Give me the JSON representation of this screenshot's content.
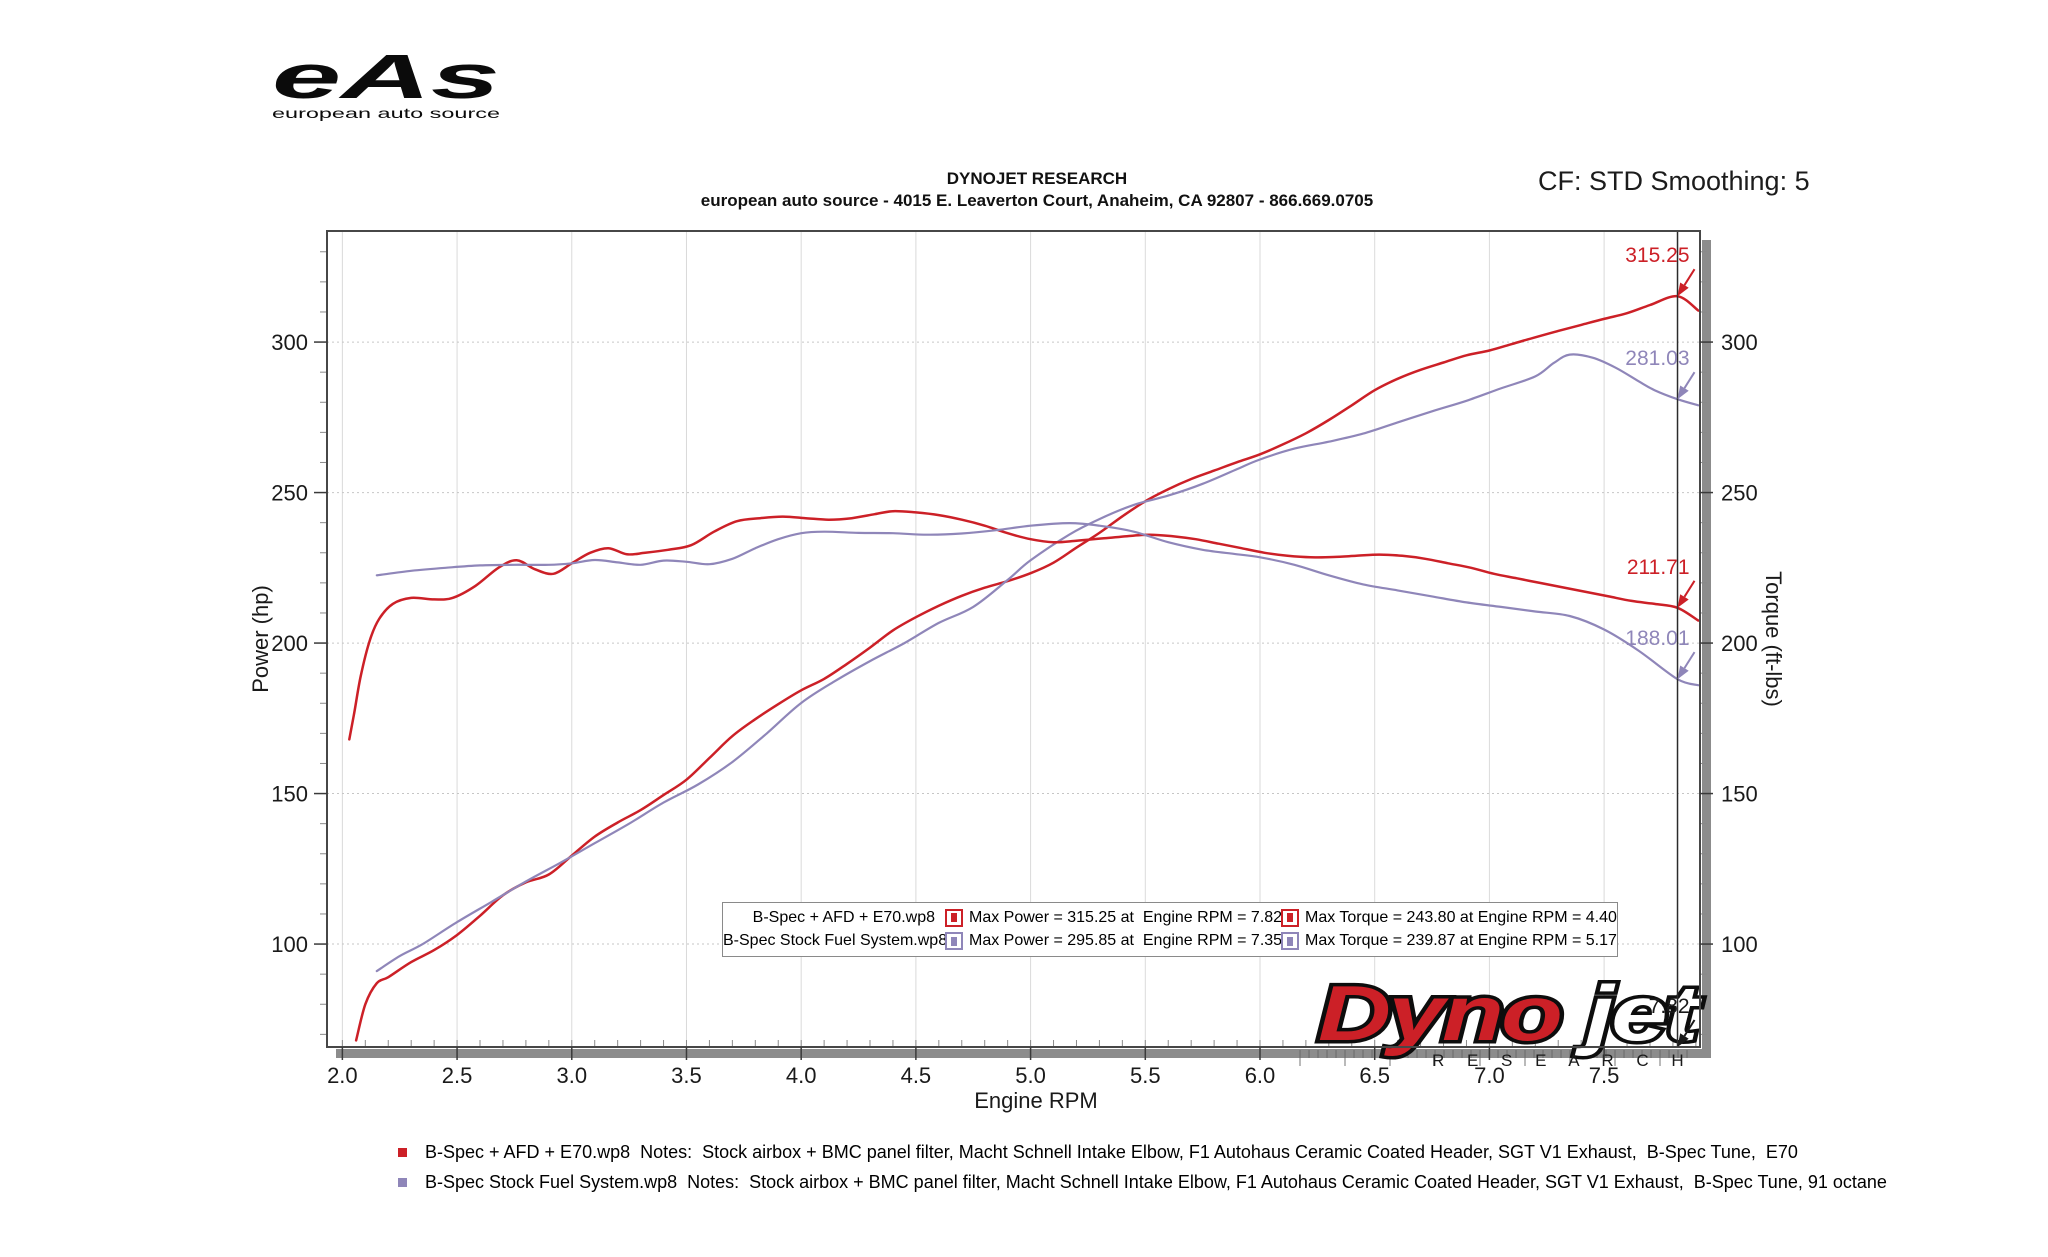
{
  "logo": {
    "text": "eAs",
    "subtext": "european auto source"
  },
  "header": {
    "line1": "DYNOJET RESEARCH",
    "line2": "european auto source - 4015 E. Leaverton Court, Anaheim, CA 92807 - 866.669.0705"
  },
  "smoothing_label": "CF: STD Smoothing: 5",
  "dynojet_logo": {
    "word1": "Dyno",
    "word2": "jet",
    "sub": "R E S E A R C H"
  },
  "legend": {
    "rows": [
      {
        "name": "B-Spec + AFD + E70.wp8",
        "color": "#cc2027",
        "power": "Max Power = 315.25 at  Engine RPM = 7.82",
        "torque": "Max Torque = 243.80 at Engine RPM = 4.40"
      },
      {
        "name": "B-Spec Stock Fuel System.wp8",
        "color": "#8f86b9",
        "power": "Max Power = 295.85 at  Engine RPM = 7.35",
        "torque": "Max Torque = 239.87 at Engine RPM = 5.17"
      }
    ]
  },
  "notes": {
    "rows": [
      {
        "color": "#cc2027",
        "text": "B-Spec + AFD + E70.wp8  Notes:  Stock airbox + BMC panel filter, Macht Schnell Intake Elbow, F1 Autohaus Ceramic Coated Header, SGT V1 Exhaust,  B-Spec Tune,  E70"
      },
      {
        "color": "#8f86b9",
        "text": "B-Spec Stock Fuel System.wp8  Notes:  Stock airbox + BMC panel filter, Macht Schnell Intake Elbow, F1 Autohaus Ceramic Coated Header, SGT V1 Exhaust,  B-Spec Tune, 91 octane"
      }
    ]
  },
  "chart_data": {
    "type": "line",
    "xlabel": "Engine RPM",
    "ylabel_left": "Power (hp)",
    "ylabel_right": "Torque (ft-lbs)",
    "x_range": [
      1.933,
      7.918
    ],
    "y_range": [
      65.8,
      336.9
    ],
    "x_ticks": [
      "2.0",
      "2.5",
      "3.0",
      "3.5",
      "4.0",
      "4.5",
      "5.0",
      "5.5",
      "6.0",
      "6.5",
      "7.0",
      "7.5"
    ],
    "y_ticks": [
      100,
      150,
      200,
      250,
      300
    ],
    "x_minor_step": 0.1,
    "y_minor_step": 10,
    "grid": true,
    "cursor_rpm": 7.82,
    "colors": {
      "red": "#cc2027",
      "purple": "#8f86b9",
      "cursor": "#2b2b2b"
    },
    "series": [
      {
        "id": "power-afd-e70",
        "name": "B-Spec + AFD + E70.wp8 Power",
        "color": "#cc2027",
        "width": 2.5,
        "points": [
          [
            2.06,
            68
          ],
          [
            2.1,
            80
          ],
          [
            2.15,
            87
          ],
          [
            2.2,
            89
          ],
          [
            2.3,
            94
          ],
          [
            2.4,
            98
          ],
          [
            2.5,
            103
          ],
          [
            2.6,
            109.4
          ],
          [
            2.7,
            116.2
          ],
          [
            2.8,
            120.5
          ],
          [
            2.9,
            123.1
          ],
          [
            3.0,
            129.4
          ],
          [
            3.1,
            135.7
          ],
          [
            3.2,
            140.4
          ],
          [
            3.3,
            144.5
          ],
          [
            3.4,
            149.5
          ],
          [
            3.5,
            154.6
          ],
          [
            3.6,
            161.8
          ],
          [
            3.7,
            169.1
          ],
          [
            3.8,
            174.7
          ],
          [
            3.9,
            179.7
          ],
          [
            4.0,
            184.3
          ],
          [
            4.1,
            188.1
          ],
          [
            4.2,
            193.1
          ],
          [
            4.3,
            198.5
          ],
          [
            4.4,
            204.2
          ],
          [
            4.5,
            208.6
          ],
          [
            4.6,
            212.4
          ],
          [
            4.7,
            215.7
          ],
          [
            4.8,
            218.4
          ],
          [
            4.9,
            220.6
          ],
          [
            5.0,
            223.2
          ],
          [
            5.1,
            226.7
          ],
          [
            5.2,
            231.7
          ],
          [
            5.3,
            236.6
          ],
          [
            5.4,
            242.1
          ],
          [
            5.5,
            247.1
          ],
          [
            5.6,
            251.1
          ],
          [
            5.7,
            254.5
          ],
          [
            5.8,
            257.3
          ],
          [
            5.9,
            260.1
          ],
          [
            6.0,
            262.7
          ],
          [
            6.1,
            266
          ],
          [
            6.2,
            269.7
          ],
          [
            6.3,
            274.1
          ],
          [
            6.4,
            279
          ],
          [
            6.5,
            284
          ],
          [
            6.6,
            287.8
          ],
          [
            6.7,
            290.8
          ],
          [
            6.8,
            293.2
          ],
          [
            6.9,
            295.6
          ],
          [
            7.0,
            297.2
          ],
          [
            7.1,
            299.4
          ],
          [
            7.2,
            301.6
          ],
          [
            7.3,
            303.7
          ],
          [
            7.4,
            305.7
          ],
          [
            7.5,
            307.7
          ],
          [
            7.6,
            309.6
          ],
          [
            7.7,
            312.3
          ],
          [
            7.82,
            315.25
          ],
          [
            7.91,
            310.5
          ]
        ]
      },
      {
        "id": "power-stock",
        "name": "B-Spec Stock Fuel System.wp8 Power",
        "color": "#8f86b9",
        "width": 2.2,
        "points": [
          [
            2.15,
            91
          ],
          [
            2.25,
            96
          ],
          [
            2.35,
            100
          ],
          [
            2.5,
            107.3
          ],
          [
            2.65,
            114
          ],
          [
            2.8,
            120.8
          ],
          [
            2.95,
            127
          ],
          [
            3.1,
            133.5
          ],
          [
            3.25,
            140
          ],
          [
            3.4,
            147
          ],
          [
            3.55,
            153
          ],
          [
            3.7,
            160.5
          ],
          [
            3.85,
            170
          ],
          [
            4.0,
            180.1
          ],
          [
            4.15,
            187.5
          ],
          [
            4.3,
            194
          ],
          [
            4.45,
            200
          ],
          [
            4.6,
            206.7
          ],
          [
            4.75,
            212
          ],
          [
            4.9,
            221
          ],
          [
            5.0,
            227.5
          ],
          [
            5.17,
            236.1
          ],
          [
            5.3,
            241.2
          ],
          [
            5.45,
            245.9
          ],
          [
            5.6,
            249
          ],
          [
            5.75,
            252.9
          ],
          [
            5.9,
            257.8
          ],
          [
            6.0,
            261
          ],
          [
            6.15,
            264.6
          ],
          [
            6.3,
            266.9
          ],
          [
            6.45,
            269.6
          ],
          [
            6.6,
            273.3
          ],
          [
            6.75,
            277
          ],
          [
            6.9,
            280.5
          ],
          [
            7.05,
            284.6
          ],
          [
            7.2,
            288.6
          ],
          [
            7.28,
            293
          ],
          [
            7.35,
            295.85
          ],
          [
            7.45,
            294.8
          ],
          [
            7.55,
            291.5
          ],
          [
            7.65,
            287
          ],
          [
            7.72,
            284
          ],
          [
            7.82,
            281.03
          ],
          [
            7.91,
            279
          ]
        ]
      },
      {
        "id": "torque-afd-e70",
        "name": "B-Spec + AFD + E70.wp8 Torque",
        "color": "#cc2027",
        "width": 2.5,
        "points": [
          [
            2.03,
            168
          ],
          [
            2.05,
            176
          ],
          [
            2.08,
            189
          ],
          [
            2.12,
            201
          ],
          [
            2.16,
            208
          ],
          [
            2.22,
            213
          ],
          [
            2.3,
            215
          ],
          [
            2.4,
            214.5
          ],
          [
            2.48,
            215
          ],
          [
            2.58,
            219
          ],
          [
            2.68,
            225
          ],
          [
            2.76,
            227.5
          ],
          [
            2.84,
            224.5
          ],
          [
            2.92,
            223
          ],
          [
            3.0,
            226.5
          ],
          [
            3.08,
            230
          ],
          [
            3.16,
            231.5
          ],
          [
            3.24,
            229.5
          ],
          [
            3.32,
            230
          ],
          [
            3.42,
            231
          ],
          [
            3.52,
            232.5
          ],
          [
            3.62,
            237
          ],
          [
            3.72,
            240.5
          ],
          [
            3.82,
            241.5
          ],
          [
            3.92,
            242
          ],
          [
            4.02,
            241.5
          ],
          [
            4.12,
            241
          ],
          [
            4.22,
            241.5
          ],
          [
            4.32,
            242.8
          ],
          [
            4.4,
            243.8
          ],
          [
            4.5,
            243.4
          ],
          [
            4.6,
            242.5
          ],
          [
            4.7,
            241
          ],
          [
            4.8,
            239
          ],
          [
            4.9,
            236.5
          ],
          [
            5.0,
            234.5
          ],
          [
            5.1,
            233.5
          ],
          [
            5.2,
            234
          ],
          [
            5.32,
            234.8
          ],
          [
            5.42,
            235.5
          ],
          [
            5.52,
            236
          ],
          [
            5.62,
            235.5
          ],
          [
            5.72,
            234.5
          ],
          [
            5.82,
            233
          ],
          [
            5.92,
            231.5
          ],
          [
            6.02,
            230
          ],
          [
            6.12,
            229
          ],
          [
            6.22,
            228.5
          ],
          [
            6.32,
            228.6
          ],
          [
            6.42,
            229
          ],
          [
            6.52,
            229.4
          ],
          [
            6.62,
            229
          ],
          [
            6.72,
            228
          ],
          [
            6.82,
            226.5
          ],
          [
            6.92,
            225
          ],
          [
            7.02,
            223
          ],
          [
            7.12,
            221.5
          ],
          [
            7.22,
            220
          ],
          [
            7.32,
            218.5
          ],
          [
            7.42,
            217
          ],
          [
            7.52,
            215.5
          ],
          [
            7.62,
            214
          ],
          [
            7.72,
            213
          ],
          [
            7.82,
            211.71
          ],
          [
            7.91,
            207.5
          ]
        ]
      },
      {
        "id": "torque-stock",
        "name": "B-Spec Stock Fuel System.wp8 Torque",
        "color": "#8f86b9",
        "width": 2.2,
        "points": [
          [
            2.15,
            222.5
          ],
          [
            2.3,
            224
          ],
          [
            2.45,
            225
          ],
          [
            2.6,
            225.8
          ],
          [
            2.75,
            226
          ],
          [
            2.9,
            226
          ],
          [
            3.0,
            226.5
          ],
          [
            3.1,
            227.6
          ],
          [
            3.2,
            226.8
          ],
          [
            3.3,
            226
          ],
          [
            3.4,
            227.4
          ],
          [
            3.5,
            227
          ],
          [
            3.6,
            226.2
          ],
          [
            3.7,
            228
          ],
          [
            3.8,
            231.5
          ],
          [
            3.9,
            234.5
          ],
          [
            4.0,
            236.5
          ],
          [
            4.1,
            237
          ],
          [
            4.25,
            236.6
          ],
          [
            4.4,
            236.5
          ],
          [
            4.55,
            236
          ],
          [
            4.7,
            236.4
          ],
          [
            4.85,
            237.5
          ],
          [
            5.0,
            239
          ],
          [
            5.17,
            239.87
          ],
          [
            5.3,
            239
          ],
          [
            5.45,
            237
          ],
          [
            5.6,
            233.5
          ],
          [
            5.75,
            231
          ],
          [
            5.9,
            229.5
          ],
          [
            6.0,
            228.5
          ],
          [
            6.15,
            226
          ],
          [
            6.3,
            222.5
          ],
          [
            6.45,
            219.5
          ],
          [
            6.6,
            217.5
          ],
          [
            6.75,
            215.5
          ],
          [
            6.9,
            213.5
          ],
          [
            7.05,
            212
          ],
          [
            7.2,
            210.5
          ],
          [
            7.35,
            209
          ],
          [
            7.5,
            204.5
          ],
          [
            7.65,
            197.5
          ],
          [
            7.82,
            188.01
          ],
          [
            7.91,
            186
          ]
        ]
      }
    ],
    "callouts": [
      {
        "text": "315.25",
        "color": "#cc2027",
        "rpm": 7.82,
        "value": 315.25
      },
      {
        "text": "281.03",
        "color": "#8f86b9",
        "rpm": 7.82,
        "value": 281.03
      },
      {
        "text": "211.71",
        "color": "#cc2027",
        "rpm": 7.82,
        "value": 211.71
      },
      {
        "text": "188.01",
        "color": "#8f86b9",
        "rpm": 7.82,
        "value": 188.01
      },
      {
        "text": "7.82",
        "color": "#1a1a1a",
        "rpm": 7.82,
        "value": null
      }
    ]
  }
}
